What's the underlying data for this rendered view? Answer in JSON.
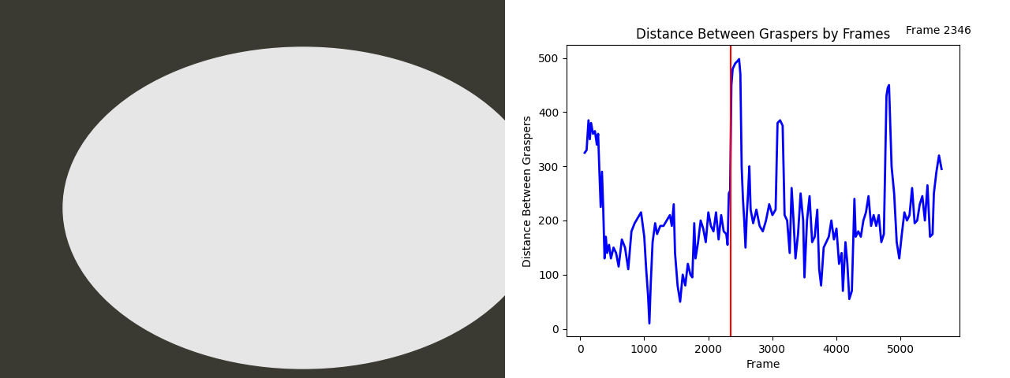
{
  "chart_data": {
    "type": "line",
    "title": "Distance Between Graspers by Frames",
    "x_label": "Frame",
    "y_label": "Distance Between Graspers",
    "annotation": "Frame 2346",
    "vline": {
      "x": 2346,
      "color": "#ff0000"
    },
    "color": "#0000ff",
    "x": [
      70,
      100,
      130,
      150,
      170,
      200,
      230,
      260,
      280,
      300,
      320,
      340,
      360,
      380,
      400,
      420,
      450,
      480,
      520,
      560,
      600,
      650,
      700,
      750,
      800,
      850,
      900,
      950,
      1000,
      1030,
      1060,
      1080,
      1100,
      1130,
      1170,
      1200,
      1250,
      1300,
      1350,
      1400,
      1430,
      1460,
      1480,
      1520,
      1560,
      1600,
      1640,
      1680,
      1720,
      1750,
      1780,
      1800,
      1840,
      1880,
      1920,
      1960,
      2000,
      2040,
      2080,
      2120,
      2160,
      2200,
      2240,
      2280,
      2300,
      2320,
      2340,
      2360,
      2380,
      2420,
      2460,
      2480,
      2500,
      2520,
      2540,
      2560,
      2580,
      2600,
      2620,
      2640,
      2660,
      2700,
      2750,
      2800,
      2850,
      2900,
      2950,
      3000,
      3050,
      3080,
      3120,
      3160,
      3190,
      3230,
      3270,
      3300,
      3330,
      3360,
      3400,
      3440,
      3480,
      3500,
      3540,
      3580,
      3620,
      3660,
      3700,
      3730,
      3760,
      3800,
      3840,
      3880,
      3920,
      3960,
      4000,
      4040,
      4080,
      4100,
      4140,
      4170,
      4200,
      4240,
      4280,
      4300,
      4340,
      4380,
      4420,
      4460,
      4500,
      4540,
      4580,
      4620,
      4660,
      4700,
      4740,
      4780,
      4800,
      4820,
      4860,
      4900,
      4940,
      4980,
      5020,
      5060,
      5100,
      5140,
      5180,
      5220,
      5260,
      5300,
      5340,
      5380,
      5420,
      5460,
      5500,
      5520,
      5560,
      5600,
      5640
    ],
    "values": [
      325,
      330,
      385,
      350,
      380,
      360,
      365,
      340,
      360,
      290,
      225,
      290,
      220,
      130,
      170,
      140,
      155,
      130,
      150,
      140,
      115,
      165,
      150,
      110,
      180,
      195,
      205,
      215,
      170,
      110,
      60,
      10,
      80,
      160,
      195,
      175,
      190,
      190,
      200,
      210,
      190,
      230,
      140,
      80,
      50,
      100,
      80,
      120,
      100,
      95,
      195,
      130,
      160,
      200,
      185,
      160,
      215,
      190,
      180,
      215,
      165,
      210,
      180,
      175,
      155,
      250,
      255,
      450,
      480,
      490,
      495,
      498,
      470,
      300,
      240,
      200,
      150,
      210,
      250,
      300,
      220,
      195,
      220,
      190,
      180,
      200,
      230,
      210,
      220,
      380,
      385,
      375,
      210,
      200,
      140,
      260,
      200,
      130,
      175,
      250,
      200,
      95,
      200,
      245,
      160,
      170,
      220,
      110,
      80,
      150,
      160,
      170,
      200,
      165,
      185,
      120,
      140,
      70,
      160,
      120,
      55,
      70,
      240,
      170,
      180,
      170,
      200,
      215,
      245,
      190,
      210,
      190,
      210,
      160,
      175,
      430,
      445,
      450,
      300,
      250,
      160,
      130,
      175,
      215,
      200,
      210,
      260,
      195,
      200,
      230,
      245,
      200,
      265,
      170,
      175,
      250,
      290,
      320,
      295
    ],
    "xlim": [
      -212,
      5920
    ],
    "ylim": [
      -14,
      524
    ],
    "xticks": [
      0,
      1000,
      2000,
      3000,
      4000,
      5000
    ],
    "yticks": [
      0,
      100,
      200,
      300,
      400,
      500
    ]
  }
}
